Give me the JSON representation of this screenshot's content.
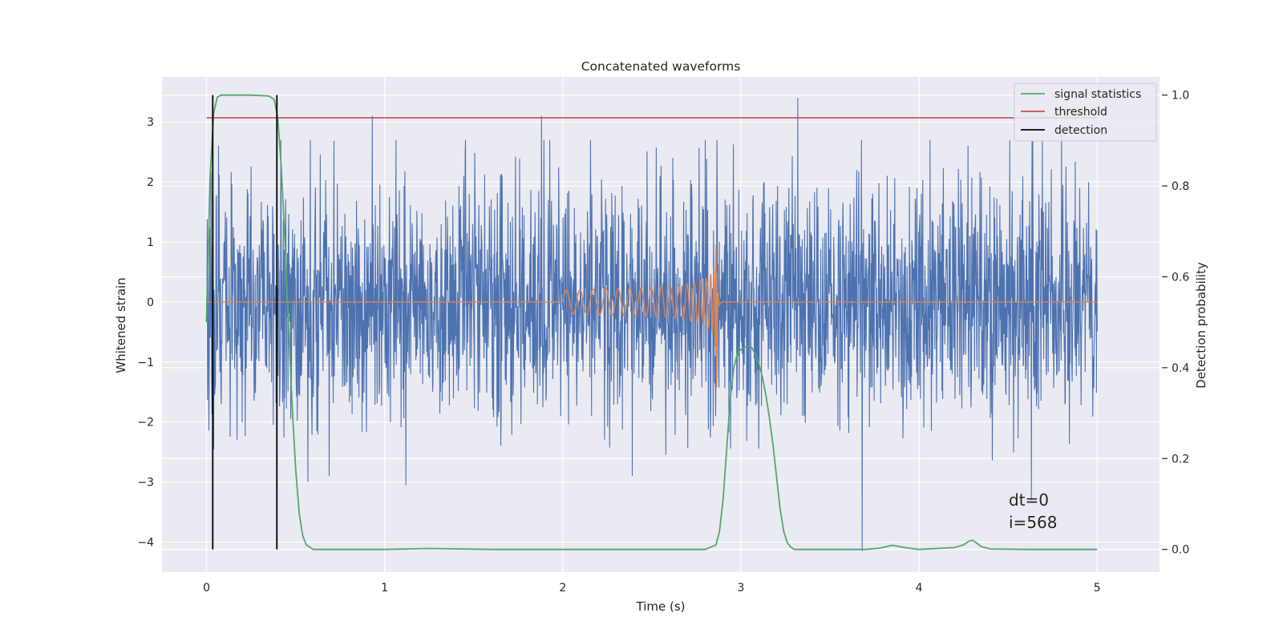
{
  "chart_data": {
    "type": "line",
    "title": "Concatenated waveforms",
    "xlabel": "Time (s)",
    "ylabel": "Whitened strain",
    "y2label": "Detection probability",
    "xlim": [
      -0.25,
      5.35
    ],
    "ylim": [
      -4.5,
      3.75
    ],
    "y2lim": [
      -0.05,
      1.04
    ],
    "xticks": [
      0,
      1,
      2,
      3,
      4,
      5
    ],
    "yticks": [
      -4,
      -3,
      -2,
      -1,
      0,
      1,
      2,
      3
    ],
    "y2ticks": [
      0.0,
      0.2,
      0.4,
      0.6,
      0.8,
      1.0
    ],
    "ytick_labels": [
      "−4",
      "−3",
      "−2",
      "−1",
      "0",
      "1",
      "2",
      "3"
    ],
    "y2tick_labels": [
      "0.0",
      "0.2",
      "0.4",
      "0.6",
      "0.8",
      "1.0"
    ],
    "grid": true,
    "legend_position": "top-right",
    "legend": [
      {
        "label": "signal statistics",
        "color": "#55a868"
      },
      {
        "label": "threshold",
        "color": "#c44e52"
      },
      {
        "label": "detection",
        "color": "#000000"
      }
    ],
    "annotation": [
      "dt=0",
      "i=568"
    ],
    "series": [
      {
        "kind": "noise",
        "color": "#4c72b0",
        "x_range": [
          0,
          5
        ],
        "envelope_approx": {
          "upper_peaks": [
            [
              0.93,
              3.1
            ],
            [
              1.88,
              3.1
            ],
            [
              3.32,
              3.4
            ],
            [
              4.8,
              2.9
            ]
          ],
          "lower_peaks": [
            [
              3.68,
              -4.15
            ],
            [
              4.63,
              -3.3
            ],
            [
              1.12,
              -3.05
            ],
            [
              0.57,
              -3.0
            ]
          ]
        }
      },
      {
        "kind": "chirp",
        "color": "#dd8452",
        "x_range": [
          2.0,
          3.0
        ],
        "start_amplitude": 0.2,
        "peak_time": 2.86,
        "peak_value": 0.95,
        "trough_value": -1.42
      },
      {
        "name": "signal statistics",
        "color": "#55a868",
        "axis": "right",
        "x": [
          0,
          0.02,
          0.04,
          0.06,
          0.08,
          0.1,
          0.15,
          0.25,
          0.35,
          0.38,
          0.4,
          0.42,
          0.44,
          0.46,
          0.48,
          0.5,
          0.52,
          0.54,
          0.56,
          0.6,
          1.0,
          1.25,
          1.6,
          2.0,
          2.5,
          2.8,
          2.86,
          2.88,
          2.9,
          2.92,
          2.94,
          2.96,
          2.98,
          3.0,
          3.02,
          3.04,
          3.06,
          3.08,
          3.1,
          3.12,
          3.14,
          3.16,
          3.18,
          3.2,
          3.22,
          3.24,
          3.26,
          3.28,
          3.3,
          3.35,
          3.5,
          3.7,
          3.78,
          3.85,
          3.92,
          4.0,
          4.2,
          4.25,
          4.28,
          4.3,
          4.32,
          4.35,
          4.4,
          4.6,
          5.0
        ],
        "y": [
          0.5,
          0.82,
          0.96,
          0.995,
          1.0,
          1.0,
          1.0,
          1.0,
          0.998,
          0.99,
          0.95,
          0.84,
          0.68,
          0.5,
          0.32,
          0.18,
          0.08,
          0.03,
          0.01,
          0.0,
          0.0,
          0.002,
          0.0,
          0.0,
          0.0,
          0.0,
          0.01,
          0.04,
          0.11,
          0.22,
          0.33,
          0.4,
          0.43,
          0.44,
          0.445,
          0.447,
          0.445,
          0.43,
          0.41,
          0.38,
          0.34,
          0.29,
          0.23,
          0.16,
          0.09,
          0.04,
          0.015,
          0.005,
          0.0,
          0.0,
          0.0,
          0.0,
          0.003,
          0.009,
          0.004,
          0.0,
          0.004,
          0.01,
          0.018,
          0.02,
          0.015,
          0.006,
          0.001,
          0.0,
          0.0
        ]
      },
      {
        "name": "threshold",
        "color": "#c44e52",
        "axis": "right",
        "x": [
          0,
          5
        ],
        "y": [
          0.95,
          0.95
        ]
      },
      {
        "name": "detection",
        "color": "#000000",
        "kind": "vlines",
        "axis": "right",
        "x": [
          0.035,
          0.395
        ],
        "y_range": [
          0.0,
          1.0
        ]
      }
    ]
  }
}
